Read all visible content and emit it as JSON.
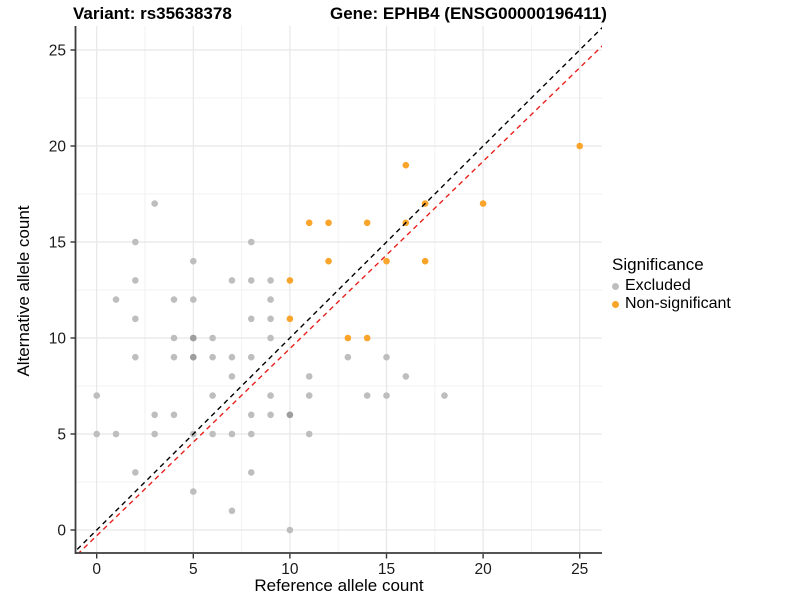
{
  "titles": {
    "variant": "Variant: rs35638378",
    "gene": "Gene: EPHB4 (ENSG00000196411)"
  },
  "legend": {
    "title": "Significance",
    "items": [
      {
        "label": "Excluded",
        "color": "#bebebe"
      },
      {
        "label": "Non-significant",
        "color": "#f9a42a"
      }
    ]
  },
  "chart_data": {
    "type": "scatter",
    "xlabel": "Reference allele count",
    "ylabel": "Alternative allele count",
    "xlim": [
      -1.1,
      26.2
    ],
    "ylim": [
      -1.2,
      26.3
    ],
    "x_ticks": [
      0,
      5,
      10,
      15,
      20,
      25
    ],
    "y_ticks": [
      0,
      5,
      10,
      15,
      20,
      25
    ],
    "x_minor_ticks": [
      2.5,
      7.5,
      12.5,
      17.5,
      22.5
    ],
    "y_minor_ticks": [
      2.5,
      7.5,
      12.5,
      17.5,
      22.5
    ],
    "grid": true,
    "legend_position": "right",
    "series": [
      {
        "name": "Excluded",
        "color": "#bebebe",
        "points": [
          [
            0,
            5
          ],
          [
            0,
            7
          ],
          [
            1,
            5
          ],
          [
            1,
            12
          ],
          [
            2,
            3
          ],
          [
            2,
            9
          ],
          [
            2,
            11
          ],
          [
            2,
            13
          ],
          [
            2,
            15
          ],
          [
            3,
            5
          ],
          [
            3,
            6
          ],
          [
            3,
            17
          ],
          [
            4,
            6
          ],
          [
            4,
            9
          ],
          [
            4,
            10
          ],
          [
            4,
            12
          ],
          [
            5,
            2
          ],
          [
            5,
            5
          ],
          [
            5,
            9
          ],
          [
            5,
            10
          ],
          [
            5,
            12
          ],
          [
            5,
            14
          ],
          [
            6,
            5
          ],
          [
            6,
            7
          ],
          [
            6,
            9
          ],
          [
            6,
            10
          ],
          [
            7,
            1
          ],
          [
            7,
            5
          ],
          [
            7,
            8
          ],
          [
            7,
            9
          ],
          [
            7,
            13
          ],
          [
            8,
            3
          ],
          [
            8,
            5
          ],
          [
            8,
            6
          ],
          [
            8,
            9
          ],
          [
            8,
            11
          ],
          [
            8,
            13
          ],
          [
            8,
            15
          ],
          [
            9,
            6
          ],
          [
            9,
            7
          ],
          [
            9,
            10
          ],
          [
            9,
            11
          ],
          [
            9,
            12
          ],
          [
            9,
            13
          ],
          [
            10,
            0
          ],
          [
            10,
            6
          ],
          [
            11,
            5
          ],
          [
            11,
            7
          ],
          [
            11,
            8
          ],
          [
            13,
            9
          ],
          [
            14,
            7
          ],
          [
            15,
            7
          ],
          [
            15,
            9
          ],
          [
            16,
            8
          ],
          [
            18,
            7
          ]
        ]
      },
      {
        "name": "Non-significant",
        "color": "#f9a42a",
        "points": [
          [
            10,
            11
          ],
          [
            10,
            13
          ],
          [
            11,
            16
          ],
          [
            12,
            14
          ],
          [
            12,
            16
          ],
          [
            13,
            10
          ],
          [
            14,
            10
          ],
          [
            14,
            16
          ],
          [
            15,
            14
          ],
          [
            16,
            16
          ],
          [
            16,
            19
          ],
          [
            17,
            14
          ],
          [
            17,
            17
          ],
          [
            20,
            17
          ],
          [
            25,
            20
          ]
        ]
      }
    ],
    "overplotted_points": {
      "color": "#9e9e9e",
      "points": [
        [
          5,
          9
        ],
        [
          5,
          10
        ],
        [
          10,
          6
        ]
      ]
    },
    "lines": [
      {
        "name": "identity",
        "style": "dashed",
        "color": "#000000",
        "slope": 1,
        "intercept": 0
      },
      {
        "name": "expected-ratio",
        "style": "dashed",
        "color": "#e8211d",
        "slope": 0.975,
        "intercept": -0.3
      }
    ]
  }
}
